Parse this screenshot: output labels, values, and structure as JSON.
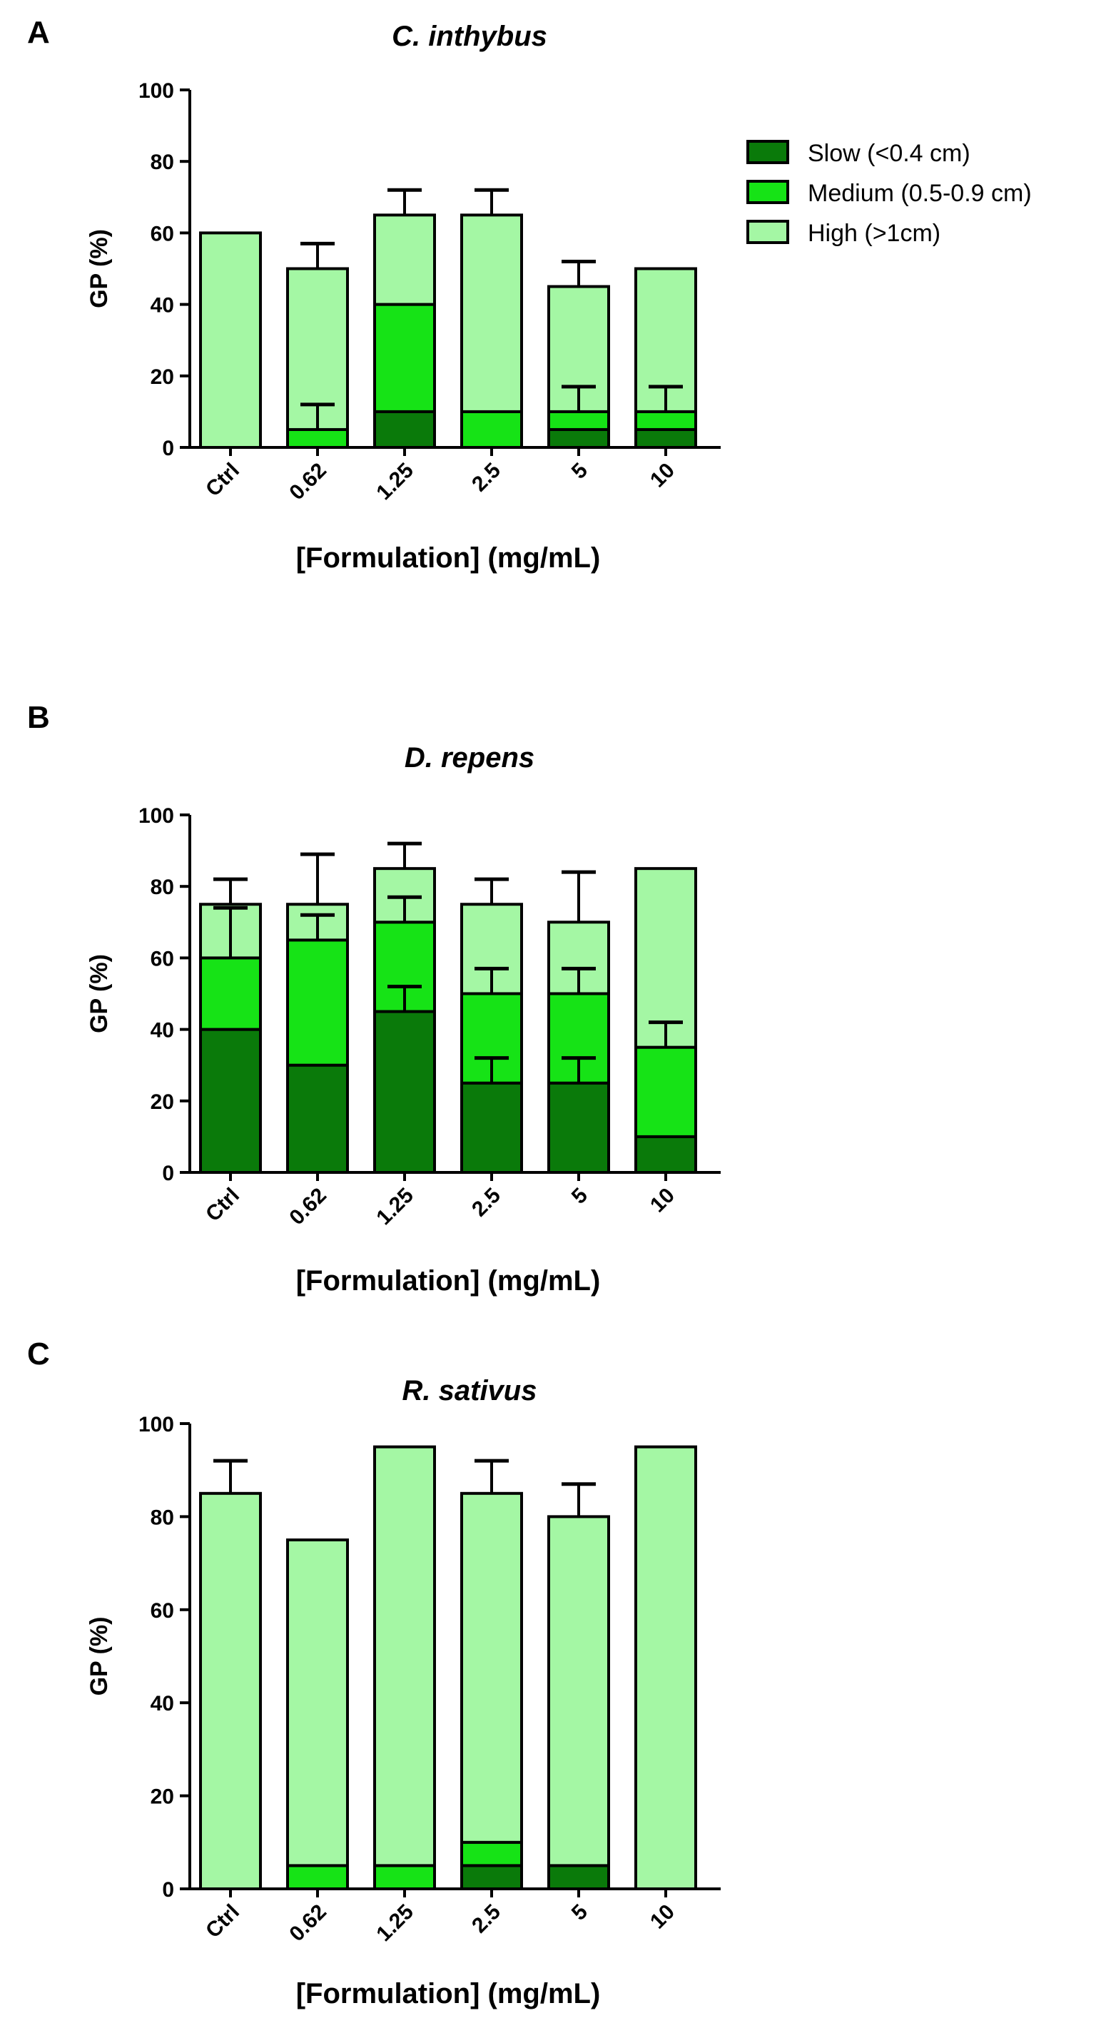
{
  "legend": {
    "entries": [
      {
        "label": "Slow (<0.4 cm)",
        "color": "#0a7a0a"
      },
      {
        "label": "Medium (0.5-0.9 cm)",
        "color": "#16e316"
      },
      {
        "label": "High (>1cm)",
        "color": "#a4f7a4"
      }
    ]
  },
  "chart_data": [
    {
      "panel": "A",
      "type": "bar",
      "stacked": true,
      "title": "C. inthybus",
      "xlabel": "[Formulation] (mg/mL)",
      "ylabel": "GP (%)",
      "ylim": [
        0,
        100
      ],
      "yticks": [
        0,
        20,
        40,
        60,
        80,
        100
      ],
      "categories": [
        "Ctrl",
        "0.62",
        "1.25",
        "2.5",
        "5",
        "10"
      ],
      "series": [
        {
          "name": "Slow (<0.4 cm)",
          "values": [
            0,
            0,
            10,
            0,
            5,
            5
          ],
          "errors": [
            0,
            0,
            0,
            0,
            0,
            0
          ]
        },
        {
          "name": "Medium (0.5-0.9 cm)",
          "values": [
            0,
            5,
            30,
            10,
            5,
            5
          ],
          "errors": [
            0,
            7,
            0,
            0,
            7,
            7
          ]
        },
        {
          "name": "High (>1cm)",
          "values": [
            60,
            45,
            25,
            55,
            35,
            40
          ],
          "errors": [
            0,
            7,
            7,
            7,
            7,
            0
          ]
        }
      ]
    },
    {
      "panel": "B",
      "type": "bar",
      "stacked": true,
      "title": "D. repens",
      "xlabel": "[Formulation] (mg/mL)",
      "ylabel": "GP (%)",
      "ylim": [
        0,
        100
      ],
      "yticks": [
        0,
        20,
        40,
        60,
        80,
        100
      ],
      "categories": [
        "Ctrl",
        "0.62",
        "1.25",
        "2.5",
        "5",
        "10"
      ],
      "series": [
        {
          "name": "Slow (<0.4 cm)",
          "values": [
            40,
            30,
            45,
            25,
            25,
            10
          ],
          "errors": [
            0,
            0,
            7,
            7,
            7,
            0
          ]
        },
        {
          "name": "Medium (0.5-0.9 cm)",
          "values": [
            20,
            35,
            25,
            25,
            25,
            25
          ],
          "errors": [
            14,
            7,
            7,
            7,
            7,
            7
          ]
        },
        {
          "name": "High (>1cm)",
          "values": [
            15,
            10,
            15,
            25,
            20,
            50
          ],
          "errors": [
            7,
            14,
            7,
            7,
            14,
            0
          ]
        }
      ]
    },
    {
      "panel": "C",
      "type": "bar",
      "stacked": true,
      "title": "R. sativus",
      "xlabel": "[Formulation] (mg/mL)",
      "ylabel": "GP (%)",
      "ylim": [
        0,
        100
      ],
      "yticks": [
        0,
        20,
        40,
        60,
        80,
        100
      ],
      "categories": [
        "Ctrl",
        "0.62",
        "1.25",
        "2.5",
        "5",
        "10"
      ],
      "series": [
        {
          "name": "Slow (<0.4 cm)",
          "values": [
            0,
            0,
            0,
            5,
            5,
            0
          ],
          "errors": [
            0,
            0,
            0,
            0,
            0,
            0
          ]
        },
        {
          "name": "Medium (0.5-0.9 cm)",
          "values": [
            0,
            5,
            5,
            5,
            0,
            0
          ],
          "errors": [
            0,
            0,
            0,
            0,
            0,
            0
          ]
        },
        {
          "name": "High (>1cm)",
          "values": [
            85,
            70,
            90,
            75,
            75,
            95
          ],
          "errors": [
            7,
            0,
            0,
            7,
            7,
            0
          ]
        }
      ]
    }
  ]
}
